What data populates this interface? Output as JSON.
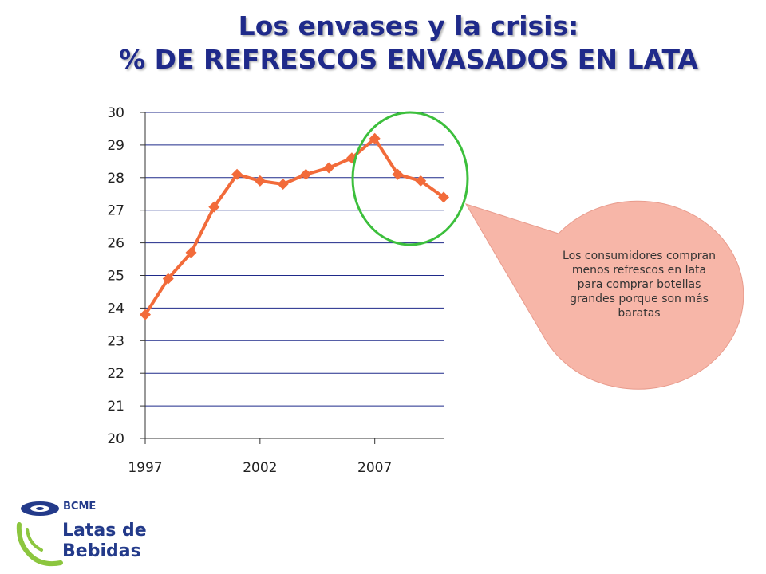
{
  "slide": {
    "title_line1": "Los envases y la crisis:",
    "title_line2": "% DE REFRESCOS ENVASADOS EN LATA"
  },
  "chart_data": {
    "type": "line",
    "title": "% DE REFRESCOS ENVASADOS EN LATA",
    "x": [
      1997,
      1998,
      1999,
      2000,
      2001,
      2002,
      2003,
      2004,
      2005,
      2006,
      2007,
      2008,
      2009,
      2010
    ],
    "series": [
      {
        "values": [
          23.8,
          24.9,
          25.7,
          27.1,
          28.1,
          27.9,
          27.8,
          28.1,
          28.3,
          28.6,
          29.2,
          28.1,
          27.9,
          27.4
        ]
      }
    ],
    "ylim": [
      20,
      30
    ],
    "yticks": [
      20,
      21,
      22,
      23,
      24,
      25,
      26,
      27,
      28,
      29,
      30
    ],
    "xticks": [
      1997,
      2002,
      2007
    ],
    "grid": true,
    "colors": {
      "line": "#f26b3a",
      "gridline": "#1f2a8a",
      "highlight_ellipse": "#3cbf3c",
      "callout": "#f7b6a8"
    }
  },
  "callout": {
    "text": "Los consumidores compran menos refrescos en lata para comprar botellas grandes porque son más baratas"
  },
  "logo": {
    "brand": "BCME",
    "line1": "Latas de",
    "line2": "Bebidas",
    "color_primary": "#233a8a",
    "color_accent": "#8cc63f"
  }
}
